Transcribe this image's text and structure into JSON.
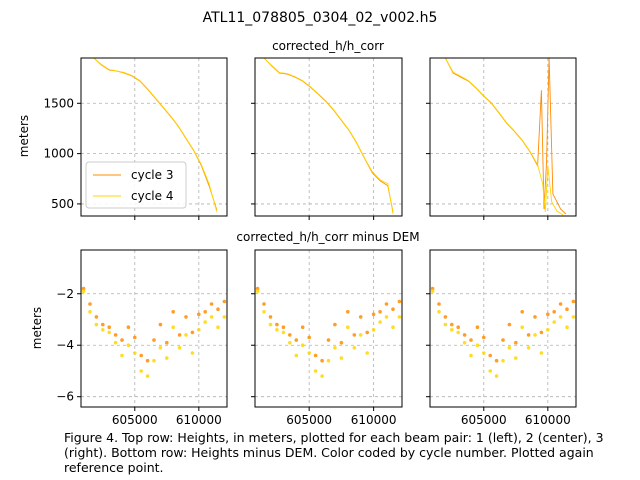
{
  "figure": {
    "title": "ATL11_078805_0304_02_v002.h5",
    "caption": "Figure 4. Top row: Heights, in meters, plotted for each beam pair: 1 (left), 2 (center), 3 (right). Bottom row: Heights minus DEM. Color coded by cycle number. Plotted again reference point."
  },
  "colors": {
    "cycle3": "#ff8c00",
    "cycle4": "#ffd700",
    "grid": "#b0b0b0",
    "axis": "#000000"
  },
  "chart_data": [
    {
      "type": "line",
      "row": "top",
      "row_title": "corrected_h/h_corr",
      "ylabel": "meters",
      "ylim": [
        380,
        1950
      ],
      "xlim": [
        600800,
        612200
      ],
      "yticks": [
        500,
        1000,
        1500
      ],
      "xticks": [
        605000,
        610000
      ],
      "xtick_labels_shown": false,
      "grid": true,
      "legend": {
        "position": "lower-left",
        "entries": [
          "cycle 3",
          "cycle 4"
        ]
      },
      "panels": [
        {
          "pair": 1,
          "series": [
            {
              "name": "cycle 3",
              "x": [
                601800,
                602400,
                603000,
                603600,
                604200,
                604800,
                605400,
                606000,
                606600,
                607200,
                607800,
                608400,
                609000,
                609600,
                610200,
                610800,
                611400
              ],
              "y": [
                1950,
                1880,
                1830,
                1820,
                1800,
                1770,
                1720,
                1640,
                1550,
                1460,
                1370,
                1270,
                1150,
                1030,
                880,
                680,
                440
              ]
            },
            {
              "name": "cycle 4",
              "x": [
                601800,
                602400,
                603000,
                603600,
                604200,
                604800,
                605400,
                606000,
                606600,
                607200,
                607800,
                608400,
                609000,
                609600,
                610200,
                610800,
                611400
              ],
              "y": [
                1950,
                1885,
                1835,
                1822,
                1805,
                1775,
                1725,
                1645,
                1555,
                1465,
                1375,
                1275,
                1155,
                1035,
                890,
                700,
                420
              ]
            }
          ]
        },
        {
          "pair": 2,
          "series": [
            {
              "name": "cycle 3",
              "x": [
                601500,
                602100,
                602700,
                603300,
                603900,
                604500,
                605100,
                605700,
                606300,
                606900,
                607500,
                608100,
                608700,
                609300,
                609900,
                610500,
                611100,
                611500
              ],
              "y": [
                1950,
                1870,
                1800,
                1790,
                1760,
                1720,
                1660,
                1590,
                1520,
                1430,
                1330,
                1230,
                1100,
                950,
                810,
                730,
                680,
                420
              ]
            },
            {
              "name": "cycle 4",
              "x": [
                601500,
                602100,
                602700,
                603300,
                603900,
                604500,
                605100,
                605700,
                606300,
                606900,
                607500,
                608100,
                608700,
                609300,
                609900,
                610500,
                611100,
                611500
              ],
              "y": [
                1950,
                1875,
                1805,
                1795,
                1765,
                1725,
                1665,
                1595,
                1525,
                1435,
                1335,
                1235,
                1105,
                955,
                820,
                740,
                700,
                400
              ]
            }
          ]
        },
        {
          "pair": 3,
          "series": [
            {
              "name": "cycle 3",
              "x": [
                602000,
                602600,
                603200,
                603800,
                604400,
                605000,
                605600,
                606200,
                606800,
                607400,
                608000,
                608600,
                609200,
                609500,
                609700,
                609900,
                610100,
                610400,
                611000,
                611400
              ],
              "y": [
                1950,
                1800,
                1760,
                1720,
                1650,
                1570,
                1500,
                1400,
                1300,
                1220,
                1130,
                1020,
                880,
                1630,
                450,
                900,
                1950,
                600,
                450,
                400
              ]
            },
            {
              "name": "cycle 4",
              "x": [
                602000,
                602600,
                603200,
                603800,
                604400,
                605000,
                605600,
                606200,
                606800,
                607400,
                608000,
                608600,
                609200,
                609600,
                609800,
                610000,
                610300,
                610700,
                611200
              ],
              "y": [
                1950,
                1810,
                1770,
                1725,
                1655,
                1575,
                1505,
                1405,
                1305,
                1225,
                1135,
                1025,
                890,
                700,
                420,
                880,
                520,
                430,
                390
              ]
            }
          ]
        }
      ]
    },
    {
      "type": "scatter",
      "row": "bottom",
      "row_title": "corrected_h/h_corr minus DEM",
      "ylabel": "meters",
      "ylim": [
        -6.4,
        -0.3
      ],
      "xlim": [
        600800,
        612200
      ],
      "yticks": [
        -6,
        -4,
        -2
      ],
      "xticks": [
        605000,
        610000
      ],
      "xtick_labels": [
        "605000",
        "610000"
      ],
      "grid": true,
      "series": [
        {
          "name": "cycle 3",
          "x": [
            601000,
            601500,
            602000,
            602500,
            603000,
            603500,
            604000,
            604500,
            605000,
            605500,
            606000,
            606500,
            607000,
            607500,
            608000,
            608500,
            609000,
            609500,
            610000,
            610500,
            611000,
            611500,
            612000
          ],
          "y": [
            -1.8,
            -2.4,
            -2.9,
            -3.2,
            -3.3,
            -3.6,
            -3.8,
            -3.3,
            -3.7,
            -4.4,
            -4.6,
            -3.8,
            -3.2,
            -3.9,
            -2.7,
            -3.6,
            -2.9,
            -3.5,
            -2.8,
            -2.7,
            -2.4,
            -2.6,
            -2.3
          ]
        },
        {
          "name": "cycle 4",
          "x": [
            601000,
            601500,
            602000,
            602500,
            603000,
            603500,
            604000,
            604500,
            605000,
            605500,
            606000,
            606500,
            607000,
            607500,
            608000,
            608500,
            609000,
            609500,
            610000,
            610500,
            611000,
            611500,
            612000
          ],
          "y": [
            -1.9,
            -2.7,
            -3.2,
            -3.4,
            -3.5,
            -3.9,
            -4.4,
            -4.0,
            -4.3,
            -5.0,
            -5.2,
            -4.6,
            -4.1,
            -4.5,
            -3.3,
            -4.1,
            -3.6,
            -4.3,
            -3.4,
            -3.1,
            -2.9,
            -3.3,
            -2.9
          ]
        }
      ]
    }
  ]
}
